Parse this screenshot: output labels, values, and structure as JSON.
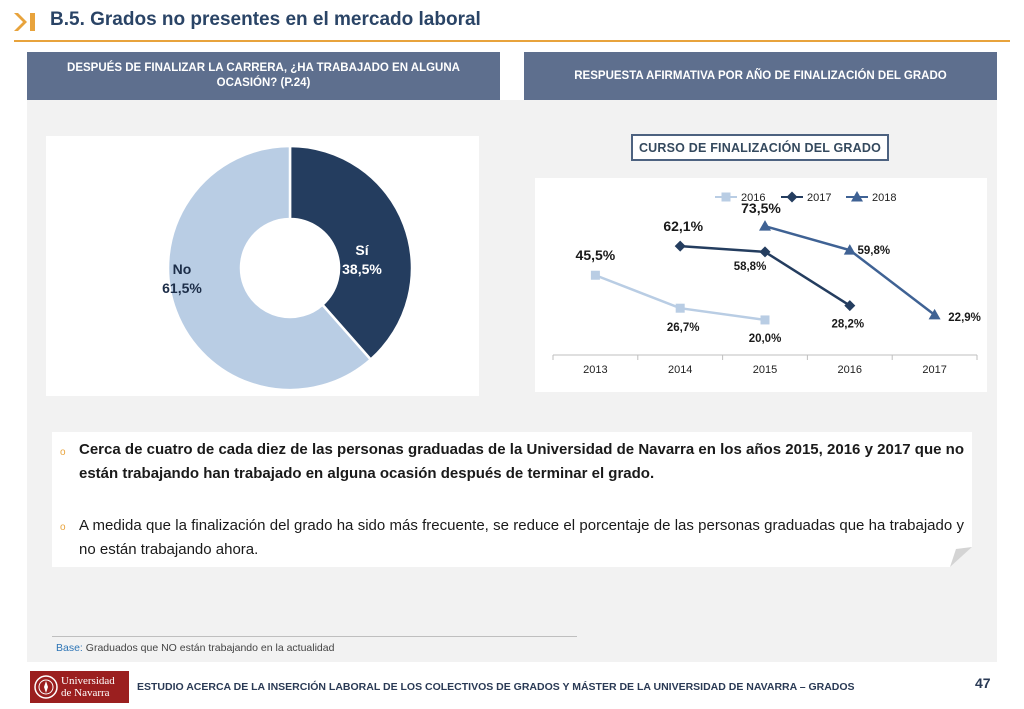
{
  "header": {
    "title": "B.5. Grados no presentes en el mercado laboral"
  },
  "colors": {
    "accent": "#e8a33c",
    "title": "#2a4466",
    "panel_header": "#5e6f8e",
    "donut_si": "#243d5f",
    "donut_no": "#b9cde4",
    "series_2016": "#b9cde4",
    "series_2017": "#243d5f",
    "series_2018": "#3f6294"
  },
  "panels": {
    "left_header": "DESPUÉS DE FINALIZAR LA CARRERA, ¿HA TRABAJADO EN ALGUNA OCASIÓN? (P.24)",
    "right_header": "RESPUESTA AFIRMATIVA POR AÑO DE FINALIZACIÓN DEL GRADO",
    "course_label": "CURSO DE FINALIZACIÓN DEL GRADO"
  },
  "chart_data": [
    {
      "type": "pie",
      "categories": [
        "Sí",
        "No"
      ],
      "values": [
        38.5,
        61.5
      ],
      "labels": [
        {
          "name": "Sí",
          "value": "38,5%"
        },
        {
          "name": "No",
          "value": "61,5%"
        }
      ]
    },
    {
      "type": "line",
      "x": [
        "2013",
        "2014",
        "2015",
        "2016",
        "2017"
      ],
      "series": [
        {
          "name": "2016",
          "values": [
            45.5,
            26.7,
            20.0,
            null,
            null
          ],
          "labels": [
            "45,5%",
            "26,7%",
            "20,0%",
            "",
            ""
          ]
        },
        {
          "name": "2017",
          "values": [
            null,
            62.1,
            58.8,
            28.2,
            null
          ],
          "labels": [
            "",
            "62,1%",
            "58,8%",
            "28,2%",
            ""
          ]
        },
        {
          "name": "2018",
          "values": [
            null,
            null,
            73.5,
            59.8,
            22.9
          ],
          "labels": [
            "",
            "",
            "73,5%",
            "59,8%",
            "22,9%"
          ]
        }
      ],
      "ylim": [
        0,
        85
      ],
      "legend": "top"
    }
  ],
  "bullets": [
    "Cerca de cuatro de cada diez de las personas graduadas de la Universidad de Navarra en los años 2015, 2016 y 2017 que no están trabajando han trabajado en alguna ocasión después de terminar el grado.",
    "A medida que la finalización del grado ha sido más frecuente, se reduce el porcentaje de las personas graduadas que ha trabajado y no están trabajando ahora."
  ],
  "base": {
    "label": "Base:",
    "text": " Graduados que NO están trabajando en la actualidad"
  },
  "footer": {
    "logo_line1": "Universidad",
    "logo_line2": "de Navarra",
    "text": "ESTUDIO ACERCA DE LA INSERCIÓN LABORAL DE LOS COLECTIVOS DE GRADOS Y MÁSTER DE LA UNIVERSIDAD DE NAVARRA – GRADOS",
    "page": "47"
  }
}
